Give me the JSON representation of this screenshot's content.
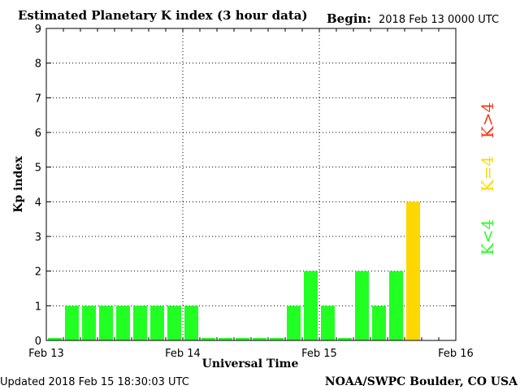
{
  "header": {
    "title": "Estimated Planetary K index (3 hour data)",
    "begin_label": "Begin:",
    "begin_value": "2018 Feb 13 0000 UTC"
  },
  "footer": {
    "updated": "Updated 2018 Feb 15 18:30:03 UTC",
    "source": "NOAA/SWPC Boulder, CO USA"
  },
  "legend": {
    "low": "K<4",
    "mid": "K=4",
    "high": "K>4"
  },
  "colors": {
    "low": "#22ff22",
    "mid": "#ffd700",
    "high": "#ff3311"
  },
  "chart_data": {
    "type": "bar",
    "xlabel": "Universal Time",
    "ylabel": "Kp index",
    "ylim": [
      0,
      9
    ],
    "yticks": [
      0,
      1,
      2,
      3,
      4,
      5,
      6,
      7,
      8,
      9
    ],
    "xticks": [
      "Feb 13",
      "Feb 14",
      "Feb 15",
      "Feb 16"
    ],
    "grid": true,
    "bar_interval_hours": 3,
    "start": "2018 Feb 13 0000 UTC",
    "values": [
      0,
      1,
      1,
      1,
      1,
      1,
      1,
      1,
      1,
      0,
      0,
      0,
      0,
      0,
      1,
      2,
      1,
      0,
      2,
      1,
      2,
      4
    ]
  }
}
